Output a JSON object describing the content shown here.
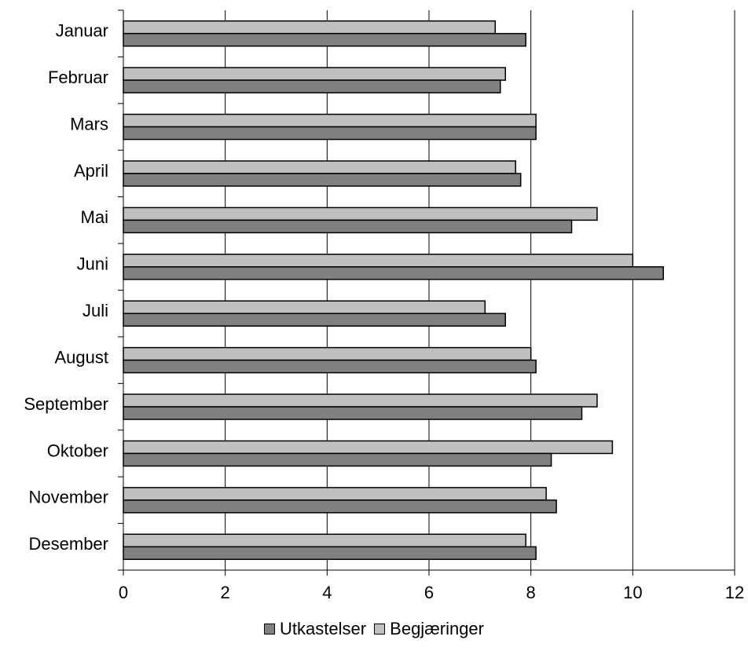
{
  "chart_data": {
    "type": "bar",
    "orientation": "horizontal",
    "categories": [
      "Januar",
      "Februar",
      "Mars",
      "April",
      "Mai",
      "Juni",
      "Juli",
      "August",
      "September",
      "Oktober",
      "November",
      "Desember"
    ],
    "series": [
      {
        "name": "Utkastelser",
        "color": "#808080",
        "values": [
          7.9,
          7.4,
          8.1,
          7.8,
          8.8,
          10.6,
          7.5,
          8.1,
          9.0,
          8.4,
          8.5,
          8.1
        ]
      },
      {
        "name": "Begjæringer",
        "color": "#c0c0c0",
        "values": [
          7.3,
          7.5,
          8.1,
          7.7,
          9.3,
          10.0,
          7.1,
          8.0,
          9.3,
          9.6,
          8.3,
          7.9
        ]
      }
    ],
    "xlim": [
      0,
      12
    ],
    "xticks": [
      "0",
      "2",
      "4",
      "6",
      "8",
      "10",
      "12"
    ],
    "grid": "vertical",
    "legend": "bottom"
  }
}
